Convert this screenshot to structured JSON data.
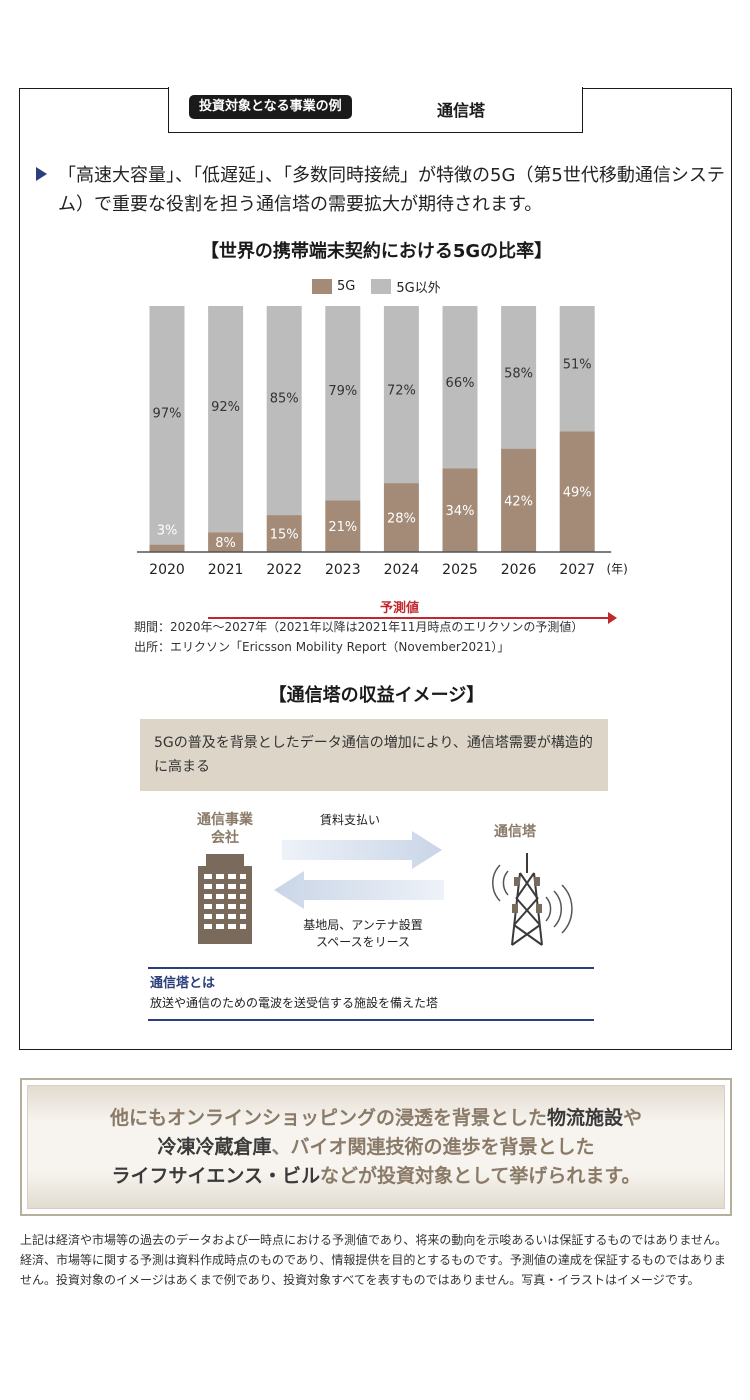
{
  "header": {
    "pill": "投資対象となる事業の例",
    "title": "通信塔"
  },
  "lead": {
    "text": "「高速大容量」、「低遅延」、「多数同時接続」が特徴の5G（第5世代移動通信システム）で重要な役割を担う通信塔の需要拡大が期待されます。"
  },
  "chart_data": {
    "type": "bar",
    "stacked": true,
    "title": "【世界の携帯端末契約における5Gの比率】",
    "categories": [
      "2020",
      "2021",
      "2022",
      "2023",
      "2024",
      "2025",
      "2026",
      "2027"
    ],
    "x_unit": "(年)",
    "series": [
      {
        "name": "5G",
        "values": [
          3,
          8,
          15,
          21,
          28,
          34,
          42,
          49
        ],
        "labels": [
          "3%",
          "8%",
          "15%",
          "21%",
          "28%",
          "34%",
          "42%",
          "49%"
        ],
        "color": "#a48b78"
      },
      {
        "name": "5G以外",
        "values": [
          97,
          92,
          85,
          79,
          72,
          66,
          58,
          51
        ],
        "labels": [
          "97%",
          "92%",
          "85%",
          "79%",
          "72%",
          "66%",
          "58%",
          "51%"
        ],
        "color": "#bcbcbc"
      }
    ],
    "ylim": [
      0,
      100
    ],
    "legend": "top-center",
    "grid": false,
    "forecast_label": "予測値",
    "forecast_from": "2021"
  },
  "chart_notes": {
    "period": "期間：2020年〜2027年（2021年以降は2021年11月時点のエリクソンの予測値）",
    "source": "出所：エリクソン「Ericsson Mobility Report（November2021）」"
  },
  "revenue": {
    "title": "【通信塔の収益イメージ】",
    "summary": "5Gの普及を背景としたデータ通信の増加により、通信塔需要が構造的に高まる",
    "company_label": "通信事業\n会社",
    "tower_label": "通信塔",
    "rent_label": "賃料支払い",
    "lease_label": "基地局、アンテナ設置\nスペースをリース",
    "definition_title": "通信塔とは",
    "definition_text": "放送や通信のための電波を送受信する施設を備えた塔"
  },
  "promo": {
    "p1": "他にもオンラインショッピングの浸透を背景とした",
    "e1": "物流施設",
    "p2": "や",
    "e2": "冷凍冷蔵倉庫",
    "p3": "、バイオ関連技術の進歩を背景とした",
    "e3": "ライフサイエンス・ビル",
    "p4": "などが投資対象として挙げられます。"
  },
  "disclaimer": "上記は経済や市場等の過去のデータおよび一時点における予測値であり、将来の動向を示唆あるいは保証するものではありません。経済、市場等に関する予測は資料作成時点のものであり、情報提供を目的とするものです。予測値の達成を保証するものではありません。投資対象のイメージはあくまで例であり、投資対象すべてを表すものではありません。写真・イラストはイメージです。"
}
